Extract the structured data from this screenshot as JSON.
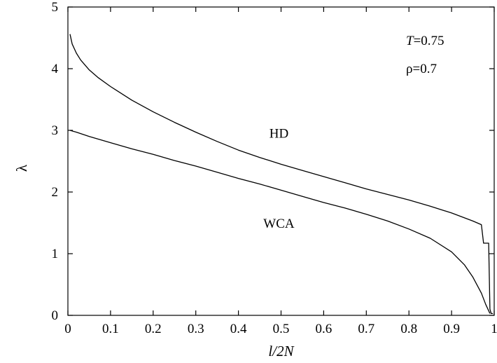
{
  "chart_data": {
    "type": "line",
    "xlabel": "l/2N",
    "ylabel": "λ",
    "xlim": [
      0,
      1
    ],
    "ylim": [
      0,
      5
    ],
    "xticks": [
      "0",
      "0.1",
      "0.2",
      "0.3",
      "0.4",
      "0.5",
      "0.6",
      "0.7",
      "0.8",
      "0.9",
      "1"
    ],
    "yticks": [
      "0",
      "1",
      "2",
      "3",
      "4",
      "5"
    ],
    "annotations": {
      "temperature_symbol": "T",
      "temperature_value": "=0.75",
      "density": "ρ=0.7"
    },
    "series": [
      {
        "name": "HD",
        "x": [
          0.005,
          0.01,
          0.02,
          0.03,
          0.05,
          0.07,
          0.1,
          0.15,
          0.2,
          0.25,
          0.3,
          0.35,
          0.4,
          0.45,
          0.5,
          0.55,
          0.6,
          0.65,
          0.7,
          0.75,
          0.8,
          0.85,
          0.9,
          0.95,
          0.97,
          0.975,
          0.98,
          0.987,
          0.99,
          0.993,
          0.997
        ],
        "y": [
          4.56,
          4.4,
          4.25,
          4.14,
          3.98,
          3.86,
          3.71,
          3.49,
          3.3,
          3.13,
          2.97,
          2.82,
          2.68,
          2.56,
          2.45,
          2.35,
          2.25,
          2.15,
          2.05,
          1.96,
          1.87,
          1.77,
          1.66,
          1.53,
          1.47,
          1.17,
          1.17,
          1.17,
          0.1,
          0.03,
          0.03
        ]
      },
      {
        "name": "WCA",
        "x": [
          0.005,
          0.02,
          0.05,
          0.1,
          0.15,
          0.2,
          0.25,
          0.3,
          0.35,
          0.4,
          0.45,
          0.5,
          0.55,
          0.6,
          0.65,
          0.7,
          0.75,
          0.8,
          0.85,
          0.9,
          0.93,
          0.95,
          0.97,
          0.98,
          0.99
        ],
        "y": [
          3.0,
          2.97,
          2.9,
          2.8,
          2.7,
          2.61,
          2.51,
          2.42,
          2.32,
          2.22,
          2.13,
          2.03,
          1.93,
          1.83,
          1.74,
          1.64,
          1.53,
          1.4,
          1.25,
          1.03,
          0.82,
          0.62,
          0.36,
          0.18,
          0.03
        ]
      }
    ],
    "series_labels": [
      {
        "text": "HD",
        "x": 0.495,
        "y": 2.88
      },
      {
        "text": "WCA",
        "x": 0.495,
        "y": 1.42
      }
    ],
    "legend": "none",
    "grid": false
  }
}
